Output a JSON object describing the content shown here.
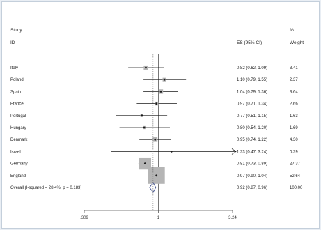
{
  "headers": {
    "study_line1": "Study",
    "study_line2": "ID",
    "es": "ES (95% CI)",
    "weight_line1": "%",
    "weight_line2": "Weight"
  },
  "chart_data": {
    "type": "forest",
    "title": "",
    "xlabel": "",
    "ylabel": "",
    "x_scale": "log",
    "xlim": [
      0.309,
      3.24
    ],
    "x_ticks": [
      0.309,
      1,
      3.24
    ],
    "x_tick_labels": [
      ".309",
      "1",
      "3.24"
    ],
    "reference_line": 1,
    "studies": [
      {
        "name": "Italy",
        "es": 0.82,
        "lo": 0.62,
        "hi": 1.09,
        "es_text": "0.82 (0.62, 1.09)",
        "weight": 3.41,
        "weight_text": "3.41"
      },
      {
        "name": "Poland",
        "es": 1.1,
        "lo": 0.79,
        "hi": 1.55,
        "es_text": "1.10 (0.79, 1.55)",
        "weight": 2.37,
        "weight_text": "2.37"
      },
      {
        "name": "Spain",
        "es": 1.04,
        "lo": 0.79,
        "hi": 1.36,
        "es_text": "1.04 (0.79, 1.36)",
        "weight": 3.64,
        "weight_text": "3.64"
      },
      {
        "name": "France",
        "es": 0.97,
        "lo": 0.71,
        "hi": 1.34,
        "es_text": "0.97 (0.71, 1.34)",
        "weight": 2.66,
        "weight_text": "2.66"
      },
      {
        "name": "Portugal",
        "es": 0.77,
        "lo": 0.51,
        "hi": 1.15,
        "es_text": "0.77 (0.51, 1.15)",
        "weight": 1.63,
        "weight_text": "1.63"
      },
      {
        "name": "Hungary",
        "es": 0.8,
        "lo": 0.54,
        "hi": 1.2,
        "es_text": "0.80 (0.54, 1.20)",
        "weight": 1.69,
        "weight_text": "1.69"
      },
      {
        "name": "Denmark",
        "es": 0.95,
        "lo": 0.74,
        "hi": 1.22,
        "es_text": "0.95 (0.74, 1.22)",
        "weight": 4.3,
        "weight_text": "4.30"
      },
      {
        "name": "Israel",
        "es": 1.23,
        "lo": 0.47,
        "hi": 3.24,
        "es_text": "1.23 (0.47, 3.24)",
        "weight": 0.29,
        "weight_text": "0.29",
        "arrow_right": true
      },
      {
        "name": "Germany",
        "es": 0.81,
        "lo": 0.73,
        "hi": 0.89,
        "es_text": "0.81 (0.73, 0.89)",
        "weight": 27.37,
        "weight_text": "27.37"
      },
      {
        "name": "England",
        "es": 0.97,
        "lo": 0.9,
        "hi": 1.04,
        "es_text": "0.97 (0.90, 1.04)",
        "weight": 52.64,
        "weight_text": "52.64"
      }
    ],
    "overall": {
      "label": "Overall  (I-squared = 28.4%, p = 0.183)",
      "es": 0.92,
      "lo": 0.87,
      "hi": 0.96,
      "es_text": "0.92 (0.87, 0.96)",
      "weight_text": "100.00"
    },
    "colors": {
      "ci_line": "#1a1a1a",
      "box": "#b5b5b5",
      "ref_line": "#555555",
      "diamond": "#3a4a8a",
      "axis": "#555555"
    }
  }
}
